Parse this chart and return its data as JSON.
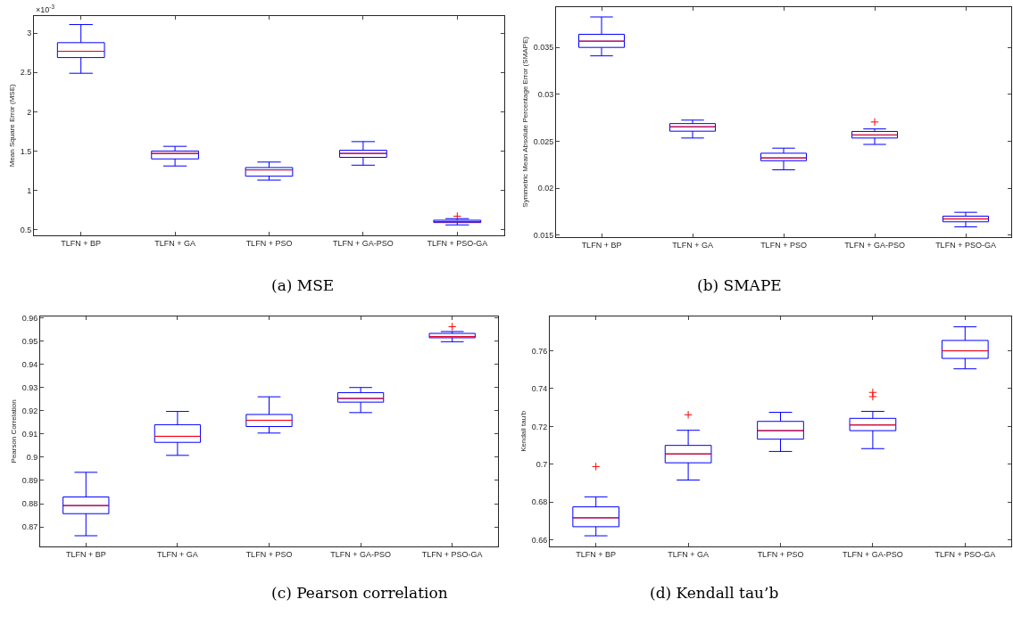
{
  "chart_data": [
    {
      "type": "box",
      "title": "(a) MSE",
      "ylabel": "Mean Square Error (MSE)",
      "annotations": [
        "×10$^{-3}$"
      ],
      "categories": [
        "TLFN + BP",
        "TLFN + GA",
        "TLFN + PSO",
        "TLFN + GA-PSO",
        "TLFN + PSO-GA"
      ],
      "color": "#0000ff",
      "boxes": [
        {
          "low": 2.49,
          "q1": 2.69,
          "median": 2.77,
          "q3": 2.88,
          "high": 3.11
        },
        {
          "low": 1.31,
          "q1": 1.4,
          "median": 1.47,
          "q3": 1.5,
          "high": 1.56
        },
        {
          "low": 1.13,
          "q1": 1.18,
          "median": 1.26,
          "q3": 1.29,
          "high": 1.36
        },
        {
          "low": 1.32,
          "q1": 1.42,
          "median": 1.47,
          "q3": 1.51,
          "high": 1.62
        },
        {
          "low": 0.56,
          "q1": 0.59,
          "median": 0.6,
          "q3": 0.62,
          "high": 0.64,
          "outliers": [
            0.67
          ]
        }
      ],
      "ylim": [
        0.43,
        3.22
      ],
      "yticks": [
        {
          "value": 0.5,
          "label": "0.5"
        },
        1,
        1.5,
        2,
        2.5,
        3
      ]
    },
    {
      "type": "box",
      "title": "(b) SMAPE",
      "ylabel": "Symmetric Mean Absolute Percentage Error (SMAPE)",
      "categories": [
        "TLFN + BP",
        "TLFN + GA",
        "TLFN + PSO",
        "TLFN + GA-PSO",
        "TLFN + PSO-GA"
      ],
      "color": "#0000ff",
      "boxes": [
        {
          "low": 0.0341,
          "q1": 0.035,
          "median": 0.03567,
          "q3": 0.0364,
          "high": 0.03825
        },
        {
          "low": 0.02534,
          "q1": 0.02607,
          "median": 0.02654,
          "q3": 0.02688,
          "high": 0.02725
        },
        {
          "low": 0.02195,
          "q1": 0.02292,
          "median": 0.02322,
          "q3": 0.02372,
          "high": 0.02426
        },
        {
          "low": 0.02466,
          "q1": 0.02534,
          "median": 0.02567,
          "q3": 0.02604,
          "high": 0.02631,
          "outliers": [
            0.02705
          ]
        },
        {
          "low": 0.01587,
          "q1": 0.01641,
          "median": 0.01671,
          "q3": 0.01701,
          "high": 0.01742
        }
      ],
      "ylim": [
        0.0148,
        0.0393
      ],
      "yticks": [
        0.015,
        0.02,
        0.025,
        0.03,
        0.035
      ]
    },
    {
      "type": "box",
      "title": "(c) Pearson correlation",
      "ylabel": "Pearson Correlation",
      "categories": [
        "TLFN + BP",
        "TLFN + GA",
        "TLFN + PSO",
        "TLFN + GA-PSO",
        "TLFN + PSO-GA"
      ],
      "color": "#0000ff",
      "boxes": [
        {
          "low": 0.8662,
          "q1": 0.8757,
          "median": 0.8792,
          "q3": 0.8829,
          "high": 0.8935
        },
        {
          "low": 0.9008,
          "q1": 0.9064,
          "median": 0.909,
          "q3": 0.914,
          "high": 0.9197
        },
        {
          "low": 0.9104,
          "q1": 0.9132,
          "median": 0.9159,
          "q3": 0.9184,
          "high": 0.926
        },
        {
          "low": 0.9192,
          "q1": 0.9237,
          "median": 0.9253,
          "q3": 0.9278,
          "high": 0.93
        },
        {
          "low": 0.9497,
          "q1": 0.9514,
          "median": 0.9519,
          "q3": 0.9533,
          "high": 0.9541,
          "outliers": [
            0.9562
          ]
        }
      ],
      "ylim": [
        0.8617,
        0.9606
      ],
      "yticks": [
        0.87,
        0.88,
        0.89,
        {
          "value": 0.9,
          "label": "0.9"
        },
        0.91,
        0.92,
        0.93,
        0.94,
        0.95,
        0.96
      ]
    },
    {
      "type": "box",
      "title": "(d) Kendall tau’b",
      "ylabel": "Kendall tau'b",
      "categories": [
        "TLFN + BP",
        "TLFN + GA",
        "TLFN + PSO",
        "TLFN + GA-PSO",
        "TLFN + PSO-GA"
      ],
      "color": "#0000ff",
      "boxes": [
        {
          "low": 0.6622,
          "q1": 0.667,
          "median": 0.6717,
          "q3": 0.6775,
          "high": 0.6828,
          "outliers": [
            0.6988
          ]
        },
        {
          "low": 0.6917,
          "q1": 0.7008,
          "median": 0.7055,
          "q3": 0.71,
          "high": 0.718,
          "outliers": [
            0.7262
          ]
        },
        {
          "low": 0.7068,
          "q1": 0.7133,
          "median": 0.7178,
          "q3": 0.7227,
          "high": 0.7275
        },
        {
          "low": 0.7083,
          "q1": 0.7178,
          "median": 0.7208,
          "q3": 0.7243,
          "high": 0.728,
          "outliers": [
            0.7358,
            0.738
          ]
        },
        {
          "low": 0.7505,
          "q1": 0.756,
          "median": 0.76,
          "q3": 0.7655,
          "high": 0.7727
        }
      ],
      "ylim": [
        0.6567,
        0.7782
      ],
      "yticks": [
        0.66,
        0.68,
        {
          "value": 0.7,
          "label": "0.7"
        },
        0.72,
        0.74,
        0.76
      ]
    }
  ]
}
